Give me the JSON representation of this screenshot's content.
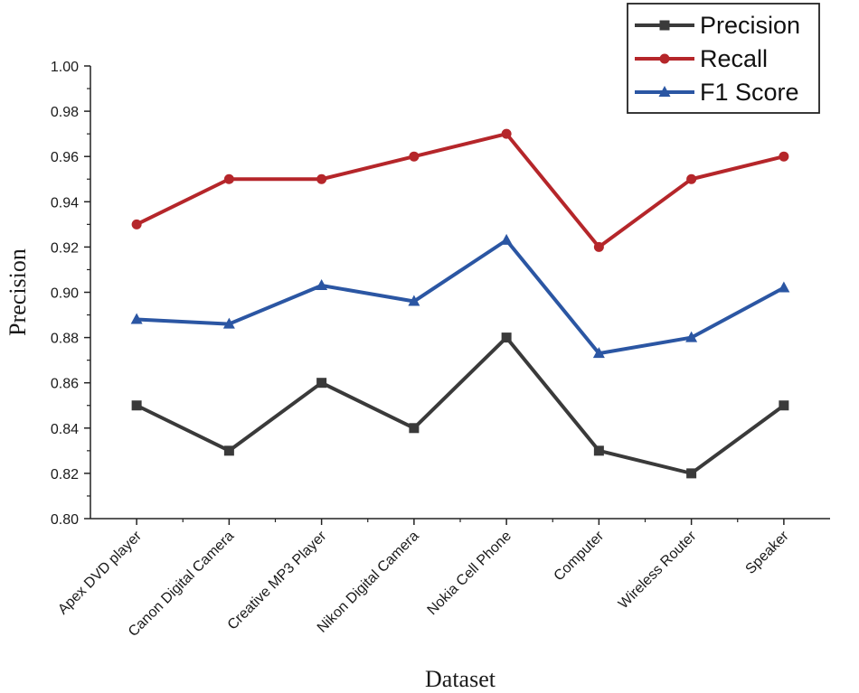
{
  "chart_data": {
    "type": "line",
    "xlabel": "Dataset",
    "ylabel": "Precision",
    "categories": [
      "Apex DVD player",
      "Canon Digital Camera",
      "Creative MP3 Player",
      "Nikon Digital Camera",
      "Nokia Cell Phone",
      "Computer",
      "Wireless Router",
      "Speaker"
    ],
    "ylim": [
      0.8,
      1.0
    ],
    "yticks": [
      "0.80",
      "0.82",
      "0.84",
      "0.86",
      "0.88",
      "0.90",
      "0.92",
      "0.94",
      "0.96",
      "0.98",
      "1.00"
    ],
    "grid": false,
    "legend_position": "top-right",
    "series": [
      {
        "name": "Precision",
        "color": "#3a3a3a",
        "marker": "square",
        "values": [
          0.85,
          0.83,
          0.86,
          0.84,
          0.88,
          0.83,
          0.82,
          0.85
        ]
      },
      {
        "name": "Recall",
        "color": "#b5262a",
        "marker": "circle",
        "values": [
          0.93,
          0.95,
          0.95,
          0.96,
          0.97,
          0.92,
          0.95,
          0.96
        ]
      },
      {
        "name": "F1 Score",
        "color": "#2b56a3",
        "marker": "triangle",
        "values": [
          0.888,
          0.886,
          0.903,
          0.896,
          0.923,
          0.873,
          0.88,
          0.902
        ]
      }
    ]
  }
}
